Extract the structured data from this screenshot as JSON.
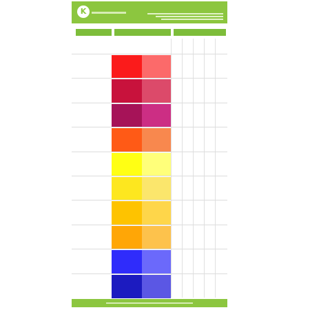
{
  "header": {
    "logo_glyph": "K",
    "company_name": "",
    "product_title": ""
  },
  "sections": {
    "product": "",
    "color": "",
    "properties": ""
  },
  "columns": {
    "product": "",
    "masstone_tint": "",
    "properties": [
      "",
      "",
      "",
      "",
      ""
    ]
  },
  "products": [
    {
      "name": "",
      "masstone": "#fb1b1b",
      "tint": "#fc6a6a",
      "values": [
        "",
        "",
        "",
        "",
        ""
      ]
    },
    {
      "name": "",
      "masstone": "#c8123c",
      "tint": "#dc4a6a",
      "values": [
        "",
        "",
        "",
        "",
        ""
      ]
    },
    {
      "name": "",
      "masstone": "#a61358",
      "tint": "#cc2e84",
      "values": [
        "",
        "",
        "",
        "",
        ""
      ]
    },
    {
      "name": "",
      "masstone": "#ff5a16",
      "tint": "#f8884e",
      "values": [
        "",
        "",
        "",
        "",
        ""
      ]
    },
    {
      "name": "",
      "masstone": "#ffff14",
      "tint": "#ffff7a",
      "values": [
        "",
        "",
        "",
        "",
        ""
      ]
    },
    {
      "name": "",
      "masstone": "#fde71f",
      "tint": "#fbe66c",
      "values": [
        "",
        "",
        "",
        "",
        ""
      ]
    },
    {
      "name": "",
      "masstone": "#fec300",
      "tint": "#fed64a",
      "values": [
        "",
        "",
        "",
        "",
        ""
      ]
    },
    {
      "name": "",
      "masstone": "#ffa606",
      "tint": "#fdc24c",
      "values": [
        "",
        "",
        "",
        "",
        ""
      ]
    },
    {
      "name": "",
      "masstone": "#2f2cfb",
      "tint": "#6b69fb",
      "values": [
        "",
        "",
        "",
        "",
        ""
      ]
    },
    {
      "name": "",
      "masstone": "#1c1bc0",
      "tint": "#5b57e4",
      "values": [
        "",
        "",
        "",
        "",
        ""
      ]
    }
  ],
  "footer": {
    "text": ""
  }
}
